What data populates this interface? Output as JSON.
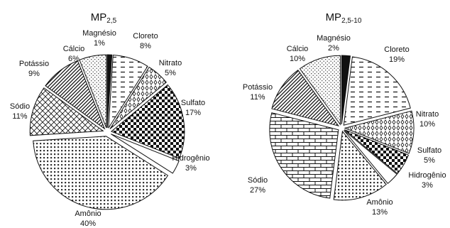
{
  "chart_data": [
    {
      "type": "pie",
      "title": "MP",
      "title_sub": "2,5",
      "slices": [
        {
          "name": "Magnésio",
          "value": 1,
          "label": "1%"
        },
        {
          "name": "Cloreto",
          "value": 8,
          "label": "8%"
        },
        {
          "name": "Nitrato",
          "value": 5,
          "label": "5%"
        },
        {
          "name": "Sulfato",
          "value": 17,
          "label": "17%"
        },
        {
          "name": "Hidrogênio",
          "value": 3,
          "label": "3%"
        },
        {
          "name": "Amônio",
          "value": 40,
          "label": "40%"
        },
        {
          "name": "Sódio",
          "value": 11,
          "label": "11%"
        },
        {
          "name": "Potássio",
          "value": 9,
          "label": "9%"
        },
        {
          "name": "Cálcio",
          "value": 6,
          "label": "6%"
        }
      ]
    },
    {
      "type": "pie",
      "title": "MP",
      "title_sub": "2,5-10",
      "slices": [
        {
          "name": "Magnésio",
          "value": 2,
          "label": "2%"
        },
        {
          "name": "Cloreto",
          "value": 19,
          "label": "19%"
        },
        {
          "name": "Nitrato",
          "value": 10,
          "label": "10%"
        },
        {
          "name": "Sulfato",
          "value": 5,
          "label": "5%"
        },
        {
          "name": "Hidrogênio",
          "value": 3,
          "label": "3%"
        },
        {
          "name": "Amônio",
          "value": 13,
          "label": "13%"
        },
        {
          "name": "Sódio",
          "value": 27,
          "label": "27%"
        },
        {
          "name": "Potássio",
          "value": 11,
          "label": "11%"
        },
        {
          "name": "Cálcio",
          "value": 10,
          "label": "10%"
        }
      ]
    }
  ]
}
